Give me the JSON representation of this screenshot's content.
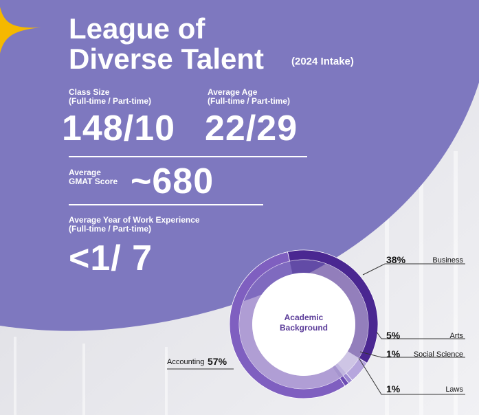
{
  "colors": {
    "panel": "#7e78bf",
    "accent_star": "#f5b800",
    "deep_purple": "#4a2791",
    "mid_purple": "#7f5fc0",
    "light_purple": "#b6a6dd",
    "text_purple": "#5b3c99"
  },
  "header": {
    "title_line1": "League of",
    "title_line2": "Diverse Talent",
    "intake": "(2024 Intake)"
  },
  "stats": {
    "class_size": {
      "label_line1": "Class Size",
      "label_line2": "(Full-time / Part-time)",
      "value": "148/10"
    },
    "average_age": {
      "label_line1": "Average Age",
      "label_line2": "(Full-time / Part-time)",
      "value": "22/29"
    },
    "gmat": {
      "label_line1": "Average",
      "label_line2": "GMAT Score",
      "value": "~680"
    },
    "work_experience": {
      "label_line1": "Average Year of Work Experience",
      "label_line2": "(Full-time / Part-time)",
      "value": "<1/ 7"
    }
  },
  "chart_data": {
    "type": "pie",
    "title": "Academic Background",
    "center_line1": "Academic",
    "center_line2": "Background",
    "slices": [
      {
        "label": "Business",
        "value": 38,
        "value_label": "38%",
        "color": "#4a2791"
      },
      {
        "label": "Arts",
        "value": 5,
        "value_label": "5%",
        "color": "#b6a6dd"
      },
      {
        "label": "Social Science",
        "value": 1,
        "value_label": "1%",
        "color": "#9c88d1"
      },
      {
        "label": "Laws",
        "value": 1,
        "value_label": "1%",
        "color": "#6c4cb3"
      },
      {
        "label": "Accounting",
        "value": 57,
        "value_label": "57%",
        "color": "#7f5fc0"
      }
    ]
  },
  "icons": {
    "star": "sparkle-star-icon"
  }
}
